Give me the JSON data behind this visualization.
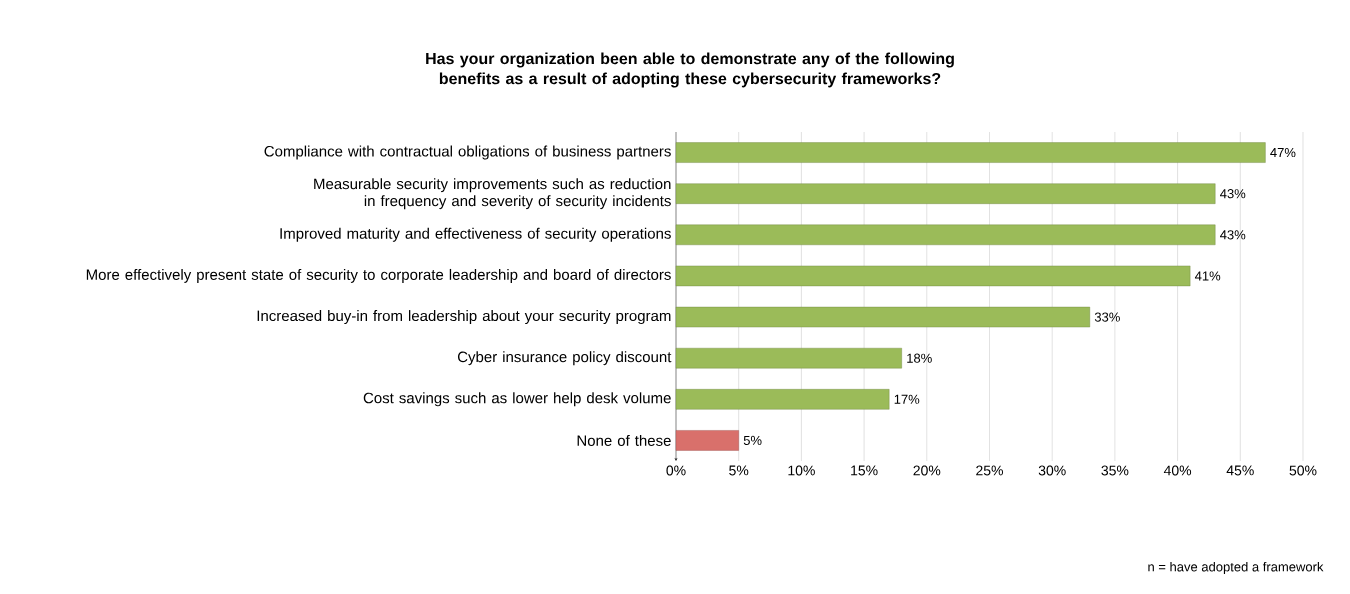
{
  "chart_data": {
    "type": "bar",
    "orientation": "horizontal",
    "title": "Has your organization been able to demonstrate any of the following benefits as a result of adopting these cybersecurity frameworks?",
    "categories": [
      "Compliance with contractual obligations of business partners",
      "Measurable security improvements such as reduction in frequency and severity of security incidents",
      "Improved maturity and effectiveness of security operations",
      "More effectively present state of security to corporate leadership and board of directors",
      "Increased buy-in from leadership about your security program",
      "Cyber insurance policy discount",
      "Cost savings such as lower help desk volume",
      "None of these"
    ],
    "values": [
      47,
      43,
      43,
      41,
      33,
      18,
      17,
      5
    ],
    "value_labels": [
      "47%",
      "43%",
      "43%",
      "41%",
      "33%",
      "18%",
      "17%",
      "5%"
    ],
    "colors": [
      "#9bbb59",
      "#9bbb59",
      "#9bbb59",
      "#9bbb59",
      "#9bbb59",
      "#9bbb59",
      "#9bbb59",
      "#d9706b"
    ],
    "xlim": [
      0,
      50
    ],
    "xticks": [
      {
        "value": 0,
        "label": "0%"
      },
      {
        "value": 5,
        "label": "5%"
      },
      {
        "value": 10,
        "label": "10%"
      },
      {
        "value": 15,
        "label": "15%"
      },
      {
        "value": 20,
        "label": "20%"
      },
      {
        "value": 25,
        "label": "25%"
      },
      {
        "value": 30,
        "label": "30%"
      },
      {
        "value": 35,
        "label": "35%"
      },
      {
        "value": 40,
        "label": "40%"
      },
      {
        "value": 45,
        "label": "45%"
      },
      {
        "value": 50,
        "label": "50%"
      }
    ],
    "grid": "x",
    "annotations": [
      "n = have adopted a framework"
    ]
  }
}
